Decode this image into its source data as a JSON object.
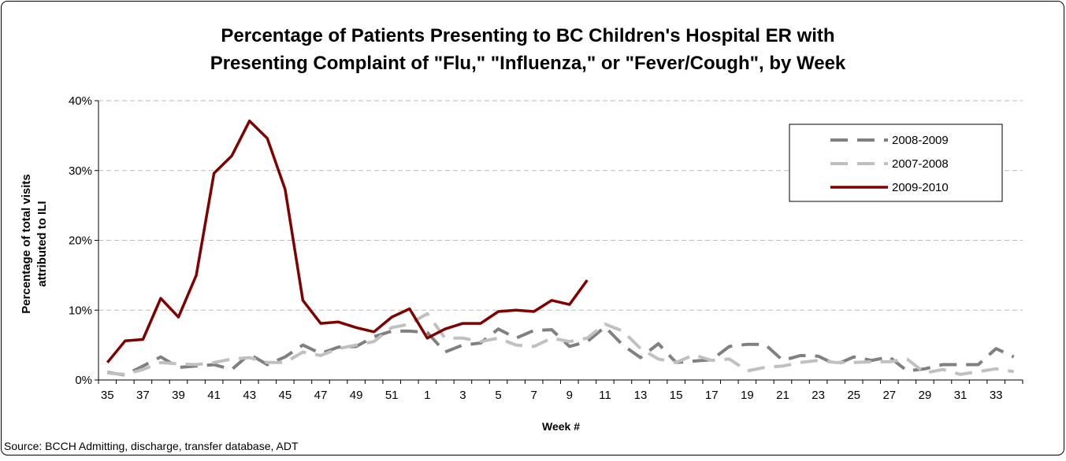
{
  "chart_data": {
    "type": "line",
    "title": [
      "Percentage of Patients Presenting to BC Children's Hospital ER with",
      "Presenting Complaint of \"Flu,\" \"Influenza,\" or \"Fever/Cough\", by Week"
    ],
    "ylabel": [
      "Percentage of total visits",
      "attributed to ILI"
    ],
    "xlabel": "Week #",
    "source": "Source: BCCH Admitting, discharge, transfer database, ADT",
    "categories": [
      "35",
      null,
      "37",
      null,
      "39",
      null,
      "41",
      null,
      "43",
      null,
      "45",
      null,
      "47",
      null,
      "49",
      null,
      "51",
      null,
      "1",
      null,
      "3",
      null,
      "5",
      null,
      "7",
      null,
      "9",
      null,
      "11",
      null,
      "13",
      null,
      "15",
      null,
      "17",
      null,
      "19",
      null,
      "21",
      null,
      "23",
      null,
      "25",
      null,
      "27",
      null,
      "29",
      null,
      "31",
      null,
      "33",
      null
    ],
    "ylim": [
      0,
      40
    ],
    "yticks": [
      {
        "value": 0,
        "label": "0%"
      },
      {
        "value": 10,
        "label": "10%"
      },
      {
        "value": 20,
        "label": "20%"
      },
      {
        "value": 30,
        "label": "30%"
      },
      {
        "value": 40,
        "label": "40%"
      }
    ],
    "grid": true,
    "legend": "upper right",
    "series": [
      {
        "name": "2008-2009",
        "color": "#808080",
        "style": "dashed",
        "values": [
          1.1,
          0.7,
          2.0,
          3.3,
          1.8,
          2.0,
          2.2,
          1.5,
          3.7,
          2.2,
          3.3,
          5.0,
          3.8,
          4.7,
          4.8,
          6.2,
          7.0,
          7.0,
          6.8,
          4.0,
          5.0,
          5.3,
          7.3,
          6.0,
          7.1,
          7.2,
          4.8,
          5.5,
          7.6,
          5.0,
          3.2,
          5.2,
          2.5,
          2.7,
          2.9,
          4.8,
          5.1,
          5.1,
          2.8,
          3.5,
          3.4,
          2.2,
          3.3,
          2.8,
          3.3,
          1.3,
          1.6,
          2.2,
          2.2,
          2.2,
          4.5,
          3.3
        ]
      },
      {
        "name": "2007-2008",
        "color": "#c0c0c0",
        "style": "dashed",
        "values": [
          1.0,
          0.8,
          1.5,
          2.5,
          2.3,
          2.2,
          2.5,
          3.0,
          3.2,
          2.5,
          2.5,
          4.0,
          3.5,
          4.5,
          5.0,
          5.5,
          7.5,
          8.0,
          9.5,
          6.0,
          6.0,
          5.5,
          6.0,
          5.0,
          4.8,
          6.0,
          5.5,
          6.0,
          8.0,
          7.0,
          4.5,
          3.0,
          2.5,
          3.6,
          2.8,
          3.0,
          1.3,
          1.8,
          2.0,
          2.5,
          2.8,
          2.5,
          2.5,
          2.6,
          2.6,
          3.0,
          1.0,
          1.5,
          0.8,
          1.2,
          1.6,
          1.2
        ]
      },
      {
        "name": "2009-2010",
        "color": "#800000",
        "style": "solid",
        "values": [
          2.5,
          5.6,
          5.8,
          11.7,
          9.0,
          15.0,
          29.6,
          32.1,
          37.1,
          34.6,
          27.3,
          11.4,
          8.1,
          8.3,
          7.5,
          6.9,
          9.0,
          10.2,
          6.0,
          7.3,
          8.1,
          8.1,
          9.8,
          10.0,
          9.8,
          11.4,
          10.8,
          14.3,
          null,
          null,
          null,
          null,
          null,
          null,
          null,
          null,
          null,
          null,
          null,
          null,
          null,
          null,
          null,
          null,
          null,
          null,
          null,
          null,
          null,
          null,
          null,
          null
        ]
      }
    ]
  }
}
